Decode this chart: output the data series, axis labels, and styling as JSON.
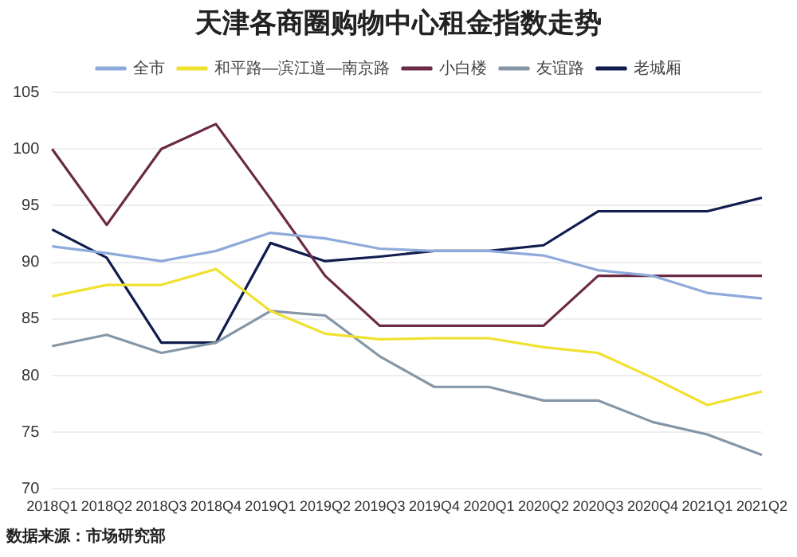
{
  "chart_data": {
    "type": "line",
    "title": "天津各商圈购物中心租金指数走势",
    "categories": [
      "2018Q1",
      "2018Q2",
      "2018Q3",
      "2018Q4",
      "2019Q1",
      "2019Q2",
      "2019Q3",
      "2019Q4",
      "2020Q1",
      "2020Q2",
      "2020Q3",
      "2020Q4",
      "2021Q1",
      "2021Q2"
    ],
    "series": [
      {
        "name": "全市",
        "color": "#8eaadb",
        "values": [
          91.4,
          90.8,
          90.1,
          91,
          92.6,
          92.1,
          91.2,
          91,
          91,
          90.6,
          89.3,
          88.8,
          87.3,
          86.8
        ]
      },
      {
        "name": "和平路—滨江道—南京路",
        "color": "#f0e130",
        "values": [
          87,
          88,
          88,
          89.4,
          85.7,
          83.7,
          83.2,
          83.3,
          83.3,
          82.5,
          82,
          79.8,
          77.4,
          78.6
        ]
      },
      {
        "name": "小白楼",
        "color": "#6b2a45",
        "values": [
          100,
          93.3,
          100,
          102.2,
          95.6,
          88.8,
          84.4,
          84.4,
          84.4,
          84.4,
          88.8,
          88.8,
          88.8,
          88.8
        ]
      },
      {
        "name": "友谊路",
        "color": "#8596a6",
        "values": [
          82.6,
          83.6,
          82,
          82.9,
          85.7,
          85.3,
          81.7,
          79,
          79,
          77.8,
          77.8,
          75.9,
          74.8,
          73
        ]
      },
      {
        "name": "老城厢",
        "color": "#0f1c4d",
        "values": [
          92.9,
          90.4,
          82.9,
          82.9,
          91.7,
          90.1,
          90.5,
          91,
          91,
          91.5,
          94.5,
          94.5,
          94.5,
          95.7
        ]
      }
    ],
    "ylim": [
      70,
      105
    ],
    "yticks": [
      70,
      75,
      80,
      85,
      90,
      95,
      100,
      105
    ],
    "grid": "y",
    "legend": "top",
    "marker": "none",
    "line_style": "solid",
    "annotations": [
      "数据来源：市场研究部"
    ]
  }
}
